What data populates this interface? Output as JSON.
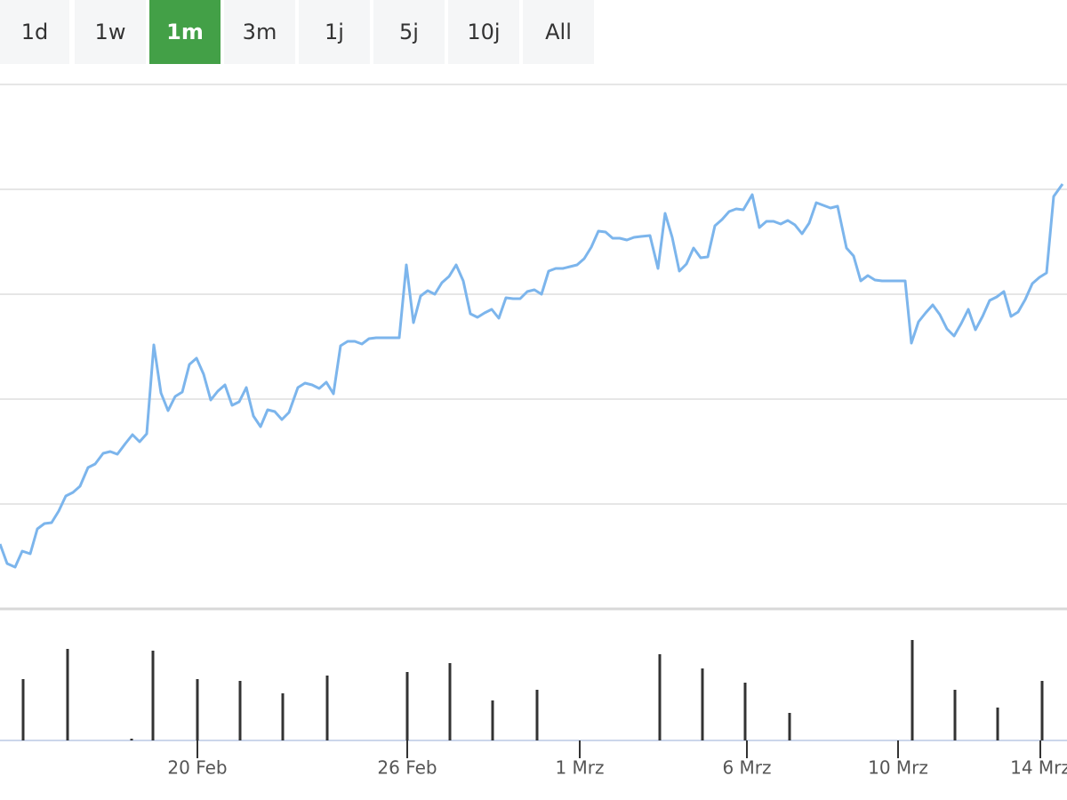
{
  "range_buttons": [
    "1d",
    "1w",
    "1m",
    "3m",
    "1j",
    "5j",
    "10j",
    "All"
  ],
  "active_button": 2,
  "chart_data": [
    {
      "type": "line",
      "color": "#7cb5ec",
      "grid": true,
      "xlim": [
        0,
        1200
      ],
      "ylim": [
        0,
        590
      ],
      "yticks": [
        0,
        118,
        236,
        354,
        472,
        590
      ],
      "x": [
        0,
        8,
        17,
        25,
        34,
        42,
        50,
        58,
        66,
        74,
        82,
        90,
        99,
        107,
        116,
        124,
        132,
        141,
        149,
        157,
        165,
        173,
        181,
        189,
        197,
        205,
        213,
        221,
        229,
        237,
        245,
        253,
        261,
        269,
        277,
        285,
        293,
        301,
        309,
        317,
        325,
        335,
        343,
        351,
        359,
        367,
        375,
        383,
        391,
        399,
        407,
        415,
        423,
        431,
        440,
        449,
        457,
        465,
        473,
        481,
        489,
        497,
        505,
        513,
        521,
        529,
        537,
        545,
        553,
        561,
        569,
        577,
        585,
        593,
        601,
        609,
        617,
        625,
        633,
        641,
        649,
        657,
        665,
        673,
        681,
        689,
        697,
        705,
        713,
        721,
        731,
        740,
        748,
        756,
        764,
        772,
        780,
        788,
        796,
        804,
        812,
        820,
        828,
        836,
        846,
        854,
        862,
        870,
        878,
        886,
        894,
        902,
        910,
        918,
        926,
        934,
        942,
        952,
        960,
        968,
        976,
        984,
        992,
        1000,
        1010,
        1018,
        1025,
        1033,
        1041,
        1049,
        1057,
        1065,
        1073,
        1081,
        1089,
        1097,
        1105,
        1113,
        1121,
        1129,
        1137,
        1145,
        1153,
        1161,
        1169,
        1177,
        1185,
        1195
      ],
      "values": [
        73,
        51,
        47,
        65,
        62,
        90,
        96,
        97,
        110,
        127,
        131,
        138,
        159,
        163,
        175,
        177,
        174,
        186,
        196,
        188,
        197,
        297,
        243,
        223,
        239,
        244,
        275,
        282,
        264,
        235,
        245,
        252,
        229,
        233,
        249,
        217,
        205,
        224,
        222,
        213,
        221,
        249,
        254,
        252,
        248,
        255,
        242,
        296,
        301,
        301,
        298,
        304,
        305,
        305,
        305,
        305,
        387,
        322,
        352,
        358,
        354,
        367,
        374,
        387,
        369,
        332,
        328,
        333,
        337,
        327,
        350,
        349,
        349,
        357,
        359,
        354,
        380,
        383,
        383,
        385,
        387,
        394,
        407,
        425,
        424,
        417,
        417,
        415,
        418,
        419,
        420,
        383,
        445,
        418,
        380,
        388,
        406,
        395,
        396,
        431,
        438,
        447,
        450,
        449,
        466,
        429,
        436,
        436,
        433,
        437,
        432,
        422,
        434,
        457,
        454,
        451,
        453,
        406,
        397,
        369,
        375,
        370,
        369,
        369,
        369,
        369,
        299,
        323,
        333,
        342,
        331,
        315,
        307,
        321,
        337,
        314,
        329,
        347,
        351,
        357,
        329,
        334,
        348,
        366,
        373,
        378,
        464,
        478
      ]
    },
    {
      "type": "bar",
      "color": "#333333",
      "xlim": [
        0,
        1200
      ],
      "ylim": [
        0,
        147
      ],
      "xticks": [
        {
          "value": 222,
          "label": "20 Feb"
        },
        {
          "value": 458,
          "label": "26 Feb"
        },
        {
          "value": 652,
          "label": "1 Mrz"
        },
        {
          "value": 840,
          "label": "6 Mrz"
        },
        {
          "value": 1010,
          "label": "10 Mrz"
        },
        {
          "value": 1170,
          "label": "14 Mrz"
        }
      ],
      "x": [
        26,
        76,
        148,
        172,
        222,
        270,
        318,
        368,
        458,
        506,
        554,
        604,
        742,
        790,
        838,
        888,
        1026,
        1074,
        1122,
        1172
      ],
      "values": [
        69,
        103,
        2,
        101,
        69,
        67,
        53,
        73,
        77,
        87,
        45,
        57,
        97,
        81,
        65,
        31,
        113,
        57,
        37,
        67
      ]
    }
  ]
}
